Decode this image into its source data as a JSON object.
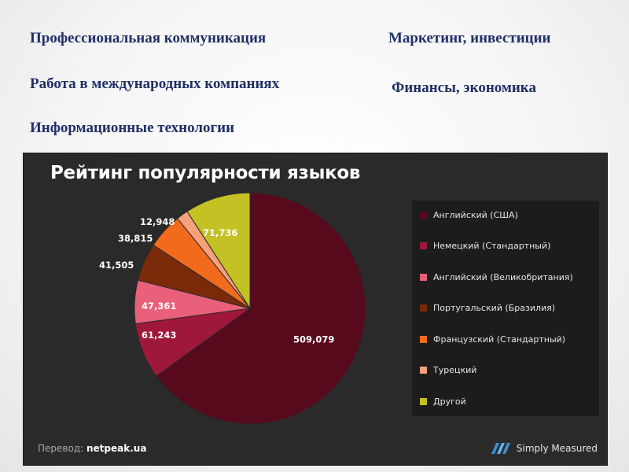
{
  "slide": {
    "topics": {
      "left": [
        "Профессиональная коммуникация",
        "Работа в международных компаниях",
        "Информационные технологии"
      ],
      "right": [
        "Маркетинг, инвестиции",
        "Финансы, экономика"
      ]
    }
  },
  "chart_data": {
    "type": "pie",
    "title": "Рейтинг популярности языков",
    "legend_position": "right",
    "slices": [
      {
        "name": "Английский (США)",
        "value": 509079,
        "label": "509,079",
        "color": "#560a1c"
      },
      {
        "name": "Немецкий (Стандартный)",
        "value": 61243,
        "label": "61,243",
        "color": "#a0173c"
      },
      {
        "name": "Английский (Великобритания)",
        "value": 47361,
        "label": "47,361",
        "color": "#e8607a"
      },
      {
        "name": "Португальский (Бразилия)",
        "value": 41505,
        "label": "41,505",
        "color": "#7a2a08"
      },
      {
        "name": "Французский (Стандартный)",
        "value": 38815,
        "label": "38,815",
        "color": "#f26b1d"
      },
      {
        "name": "Турецкий",
        "value": 12948,
        "label": "12,948",
        "color": "#f6a07c"
      },
      {
        "name": "Другой",
        "value": 71736,
        "label": "71,736",
        "color": "#c3c123"
      }
    ]
  },
  "footer": {
    "credit_prefix": "Перевод:",
    "credit_site": "netpeak.ua",
    "brand": "Simply Measured",
    "brand_icon": "simply-measured-logo-icon"
  }
}
